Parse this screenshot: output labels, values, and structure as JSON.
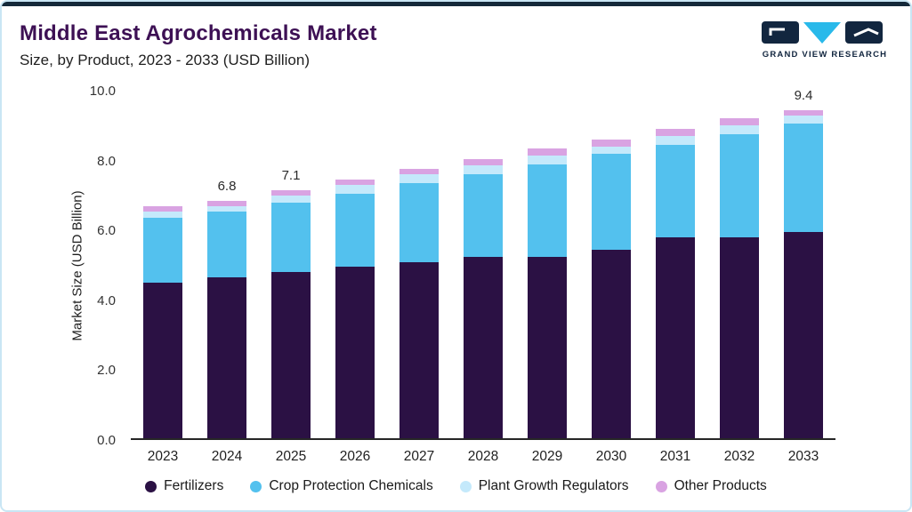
{
  "header": {
    "title": "Middle East Agrochemicals Market",
    "subtitle": "Size, by Product, 2023 - 2033 (USD Billion)",
    "logo_text": "GRAND VIEW RESEARCH"
  },
  "chart_data": {
    "type": "bar",
    "stacked": true,
    "title": "Middle East Agrochemicals Market Size, by Product, 2023 - 2033 (USD Billion)",
    "xlabel": "",
    "ylabel": "Market Size (USD Billion)",
    "ylim": [
      0,
      10
    ],
    "yticks": [
      0.0,
      2.0,
      4.0,
      6.0,
      8.0,
      10.0
    ],
    "grid": false,
    "legend_position": "bottom",
    "categories": [
      "2023",
      "2024",
      "2025",
      "2026",
      "2027",
      "2028",
      "2029",
      "2030",
      "2031",
      "2032",
      "2033"
    ],
    "series": [
      {
        "name": "Fertilizers",
        "color": "#2b1144",
        "values": [
          4.45,
          4.6,
          4.75,
          4.9,
          5.05,
          5.2,
          5.2,
          5.4,
          5.75,
          5.75,
          5.9
        ]
      },
      {
        "name": "Crop Protection Chemicals",
        "color": "#53c1ee",
        "values": [
          1.85,
          1.9,
          2.0,
          2.1,
          2.25,
          2.35,
          2.65,
          2.75,
          2.65,
          2.95,
          3.1
        ]
      },
      {
        "name": "Plant Growth Regulators",
        "color": "#c4e9fb",
        "values": [
          0.2,
          0.15,
          0.2,
          0.25,
          0.25,
          0.25,
          0.25,
          0.2,
          0.25,
          0.25,
          0.25
        ]
      },
      {
        "name": "Other Products",
        "color": "#d9a3e2",
        "values": [
          0.15,
          0.15,
          0.15,
          0.15,
          0.15,
          0.2,
          0.2,
          0.2,
          0.2,
          0.2,
          0.15
        ]
      }
    ],
    "totals": [
      6.65,
      6.8,
      7.1,
      7.4,
      7.7,
      8.0,
      8.3,
      8.55,
      8.85,
      9.15,
      9.4
    ],
    "bar_labels": {
      "2024": "6.8",
      "2025": "7.1",
      "2033": "9.4"
    }
  },
  "colors": {
    "accent_bar": "#14293a",
    "frame": "#c9e6f4",
    "title": "#3d1054",
    "logo_navy": "#12263f",
    "logo_cyan": "#29b9ea"
  }
}
